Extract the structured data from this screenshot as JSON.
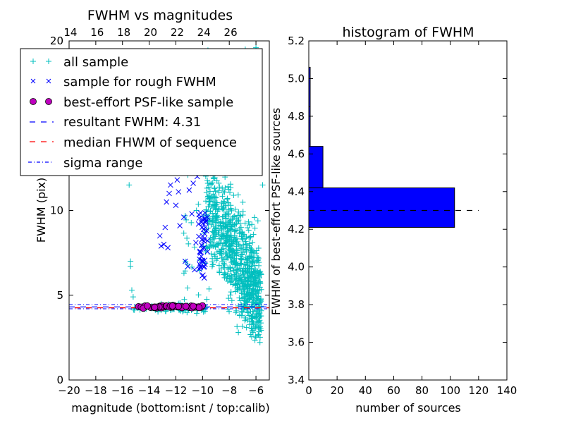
{
  "colors": {
    "all_sample": "#00bfbf",
    "rough_sample": "#0000ff",
    "psf_marker_fill": "#bf00bf",
    "resultant_line": "#0000ff",
    "median_line": "#ff0000",
    "sigma_line": "#0000ff",
    "hist_bar": "#0000ff",
    "hist_median_line": "#000000"
  },
  "chart_data": [
    {
      "type": "scatter",
      "title": "FWHM vs magnitudes",
      "xlabel": "magnitude (bottom:isnt / top:calib)",
      "ylabel": "FWHM (pix)",
      "xlim": [
        -20,
        -5
      ],
      "ylim": [
        0,
        20
      ],
      "x_ticks": [
        -20,
        -18,
        -16,
        -14,
        -12,
        -10,
        -8,
        -6
      ],
      "x_tick_labels": [
        "−20",
        "−18",
        "−16",
        "−14",
        "−12",
        "−10",
        "−8",
        "−6"
      ],
      "y_ticks": [
        0,
        5,
        10,
        20
      ],
      "y_tick_labels": [
        "0",
        "5",
        "10",
        "20"
      ],
      "top_axis": {
        "ticks": [
          14,
          16,
          18,
          20,
          22,
          24,
          26
        ],
        "tick_labels": [
          "14",
          "16",
          "18",
          "20",
          "22",
          "24",
          "26"
        ],
        "calib_offset": 33.9
      },
      "legend": {
        "placement": "top-left",
        "entries": [
          "all sample",
          "sample for rough FWHM",
          "best-effort PSF-like sample",
          "resultant FWHM: 4.31",
          "median FHWM of sequence",
          "sigma range"
        ]
      },
      "resultant_fwhm": 4.31,
      "median_fwhm": 4.3,
      "sigma_range": [
        4.2,
        4.45
      ],
      "series": [
        {
          "name": "sample for rough FWHM",
          "marker": "x",
          "points": [
            [
              -13.2,
              8.5
            ],
            [
              -12.8,
              9.0
            ],
            [
              -13.1,
              7.9
            ],
            [
              -12.6,
              7.8
            ],
            [
              -12.0,
              10.3
            ],
            [
              -12.7,
              10.5
            ],
            [
              -12.5,
              11.0
            ],
            [
              -12.4,
              11.5
            ],
            [
              -11.8,
              11.1
            ],
            [
              -11.9,
              11.8
            ],
            [
              -11.2,
              12.5
            ],
            [
              -11.0,
              11.2
            ],
            [
              -11.4,
              9.6
            ],
            [
              -10.8,
              9.8
            ],
            [
              -10.5,
              8.1
            ],
            [
              -11.1,
              6.7
            ],
            [
              -10.6,
              6.5
            ],
            [
              -10.2,
              6.8
            ],
            [
              -10.1,
              7.3
            ],
            [
              -9.9,
              7.8
            ],
            [
              -10.0,
              8.5
            ],
            [
              -9.8,
              9.0
            ],
            [
              -9.9,
              8.2
            ],
            [
              -10.3,
              9.2
            ],
            [
              -9.7,
              8.8
            ],
            [
              -12.9,
              8.0
            ],
            [
              -11.7,
              9.1
            ],
            [
              -10.4,
              12.0
            ],
            [
              -10.7,
              11.6
            ],
            [
              -11.3,
              7.0
            ]
          ]
        },
        {
          "name": "best-effort PSF-like sample",
          "marker": "o",
          "points": [
            [
              -14.8,
              4.33
            ],
            [
              -14.6,
              4.3
            ],
            [
              -14.3,
              4.32
            ],
            [
              -13.9,
              4.28
            ],
            [
              -13.6,
              4.31
            ],
            [
              -13.2,
              4.36
            ],
            [
              -12.9,
              4.3
            ],
            [
              -12.7,
              4.34
            ],
            [
              -12.4,
              4.29
            ],
            [
              -12.1,
              4.37
            ],
            [
              -11.8,
              4.31
            ],
            [
              -11.5,
              4.3
            ],
            [
              -11.2,
              4.33
            ],
            [
              -11.0,
              4.28
            ],
            [
              -10.8,
              4.35
            ],
            [
              -10.5,
              4.3
            ],
            [
              -10.3,
              4.32
            ],
            [
              -10.1,
              4.29
            ],
            [
              -12.2,
              4.4
            ],
            [
              -13.0,
              4.38
            ]
          ]
        }
      ]
    },
    {
      "type": "bar",
      "title": "histogram of FWHM",
      "xlabel": "number of sources",
      "ylabel": "FWHM of best-effort PSF-like sources",
      "xlim": [
        0,
        140
      ],
      "ylim": [
        3.4,
        5.2
      ],
      "x_ticks": [
        0,
        20,
        40,
        60,
        80,
        100,
        120,
        140
      ],
      "y_ticks": [
        3.4,
        3.6,
        3.8,
        4.0,
        4.2,
        4.4,
        4.6,
        4.8,
        5.0,
        5.2
      ],
      "y_tick_labels": [
        "3.4",
        "3.6",
        "3.8",
        "4.0",
        "4.2",
        "4.4",
        "4.6",
        "4.8",
        "5.0",
        "5.2"
      ],
      "orientation": "horizontal",
      "bins": [
        {
          "low": 4.21,
          "high": 4.42,
          "count": 103
        },
        {
          "low": 4.42,
          "high": 4.64,
          "count": 10
        },
        {
          "low": 4.64,
          "high": 4.85,
          "count": 1
        },
        {
          "low": 4.85,
          "high": 5.06,
          "count": 1
        }
      ],
      "median_line": {
        "value": 4.3,
        "x_range": [
          0,
          120
        ]
      }
    }
  ]
}
